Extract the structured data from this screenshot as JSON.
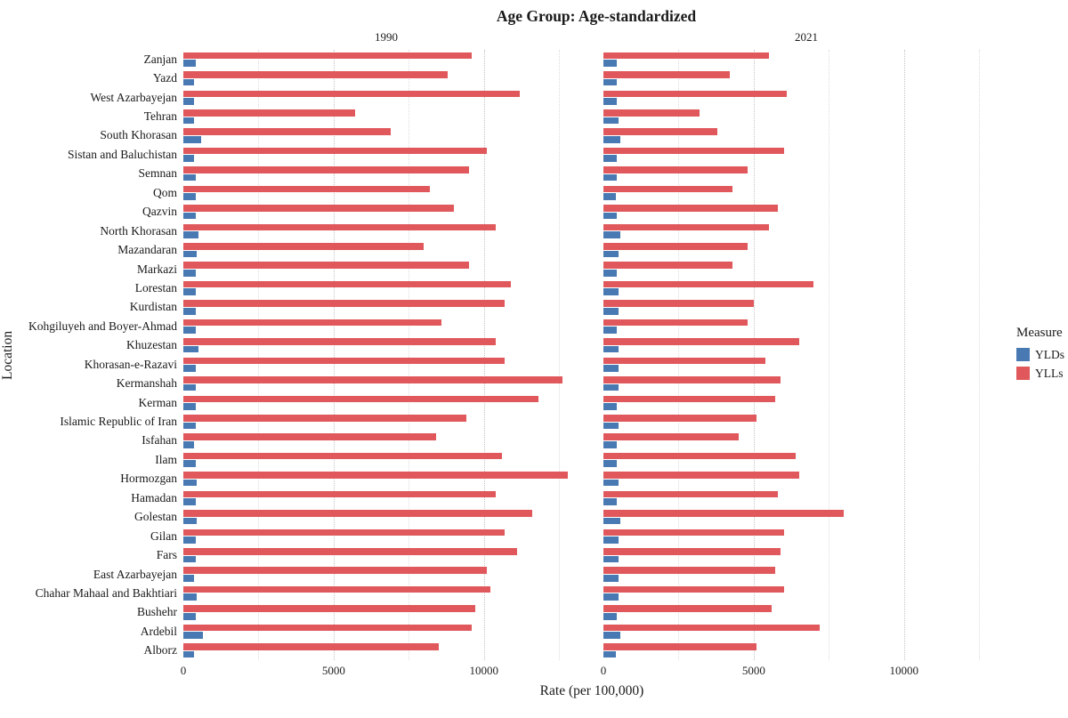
{
  "chart_data": {
    "type": "bar",
    "orientation": "horizontal",
    "title": "Age Group: Age-standardized",
    "xlabel": "Rate (per 100,000)",
    "ylabel": "Location",
    "legend_title": "Measure",
    "legend_position": "right",
    "grid": "dotted-vertical",
    "xlim": [
      0,
      13500
    ],
    "xticks": [
      0,
      5000,
      10000
    ],
    "minor_gridlines": [
      2500,
      7500,
      12500
    ],
    "categories": [
      "Zanjan",
      "Yazd",
      "West Azarbayejan",
      "Tehran",
      "South Khorasan",
      "Sistan and Baluchistan",
      "Semnan",
      "Qom",
      "Qazvin",
      "North Khorasan",
      "Mazandaran",
      "Markazi",
      "Lorestan",
      "Kurdistan",
      "Kohgiluyeh and Boyer-Ahmad",
      "Khuzestan",
      "Khorasan-e-Razavi",
      "Kermanshah",
      "Kerman",
      "Islamic Republic of Iran",
      "Isfahan",
      "Ilam",
      "Hormozgan",
      "Hamadan",
      "Golestan",
      "Gilan",
      "Fars",
      "East Azarbayejan",
      "Chahar Mahaal and Bakhtiari",
      "Bushehr",
      "Ardebil",
      "Alborz"
    ],
    "facets": [
      {
        "label": "1990",
        "series": [
          {
            "name": "YLDs",
            "color": "#4879B2",
            "values": [
              400,
              350,
              350,
              350,
              600,
              350,
              400,
              400,
              400,
              500,
              450,
              400,
              400,
              400,
              400,
              500,
              400,
              400,
              400,
              400,
              350,
              400,
              450,
              400,
              450,
              400,
              400,
              350,
              450,
              400,
              650,
              350
            ]
          },
          {
            "name": "YLLs",
            "color": "#E0585B",
            "values": [
              9600,
              8800,
              11200,
              5700,
              6900,
              10100,
              9500,
              8200,
              9000,
              10400,
              8000,
              9500,
              10900,
              10700,
              8600,
              10400,
              10700,
              12600,
              11800,
              9400,
              8400,
              10600,
              12800,
              10400,
              11600,
              10700,
              11100,
              10100,
              10200,
              9700,
              9600,
              8500
            ]
          }
        ]
      },
      {
        "label": "2021",
        "series": [
          {
            "name": "YLDs",
            "color": "#4879B2",
            "values": [
              450,
              450,
              450,
              500,
              550,
              450,
              450,
              400,
              450,
              550,
              500,
              450,
              500,
              500,
              450,
              500,
              500,
              500,
              450,
              500,
              450,
              450,
              500,
              450,
              550,
              500,
              500,
              500,
              500,
              450,
              550,
              400
            ]
          },
          {
            "name": "YLLs",
            "color": "#E0585B",
            "values": [
              5500,
              4200,
              6100,
              3200,
              3800,
              6000,
              4800,
              4300,
              5800,
              5500,
              4800,
              4300,
              7000,
              5000,
              4800,
              6500,
              5400,
              5900,
              5700,
              5100,
              4500,
              6400,
              6500,
              5800,
              8000,
              6000,
              5900,
              5700,
              6000,
              5600,
              7200,
              5100
            ]
          }
        ]
      }
    ]
  }
}
